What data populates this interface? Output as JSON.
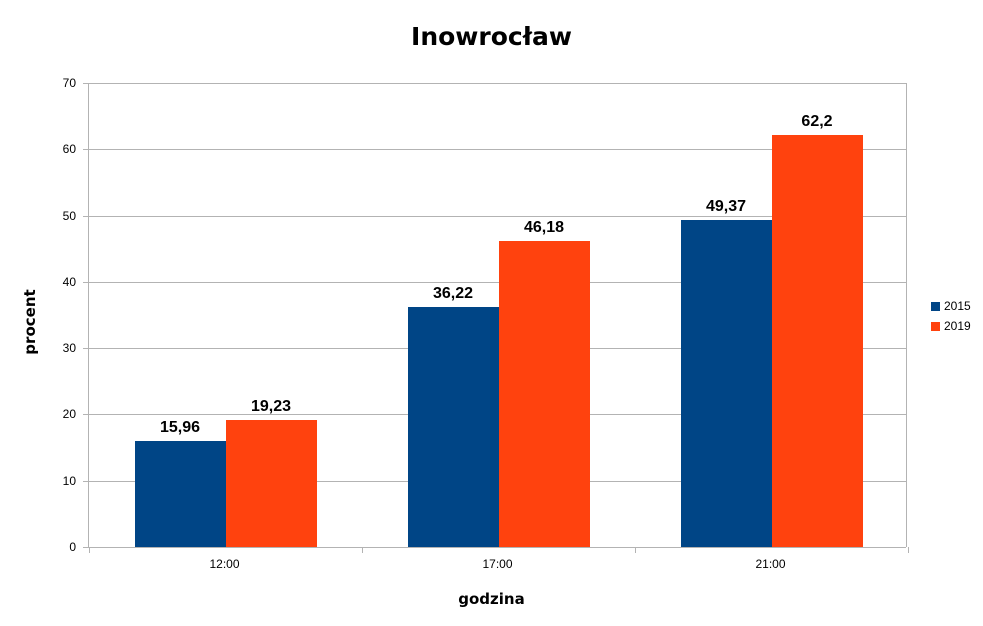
{
  "chart_data": {
    "type": "bar",
    "title": "Inowrocław",
    "xlabel": "godzina",
    "ylabel": "procent",
    "categories": [
      "12:00",
      "17:00",
      "21:00"
    ],
    "series": [
      {
        "name": "2015",
        "color": "#004586",
        "values": [
          15.96,
          36.22,
          49.37
        ],
        "labels": [
          "15,96",
          "36,22",
          "49,37"
        ]
      },
      {
        "name": "2019",
        "color": "#ff420e",
        "values": [
          19.23,
          46.18,
          62.2
        ],
        "labels": [
          "19,23",
          "46,18",
          "62,2"
        ]
      }
    ],
    "ylim": [
      0,
      70
    ],
    "yticks": [
      "0",
      "10",
      "20",
      "30",
      "40",
      "50",
      "60",
      "70"
    ],
    "grid": true,
    "legend_position": "right"
  }
}
